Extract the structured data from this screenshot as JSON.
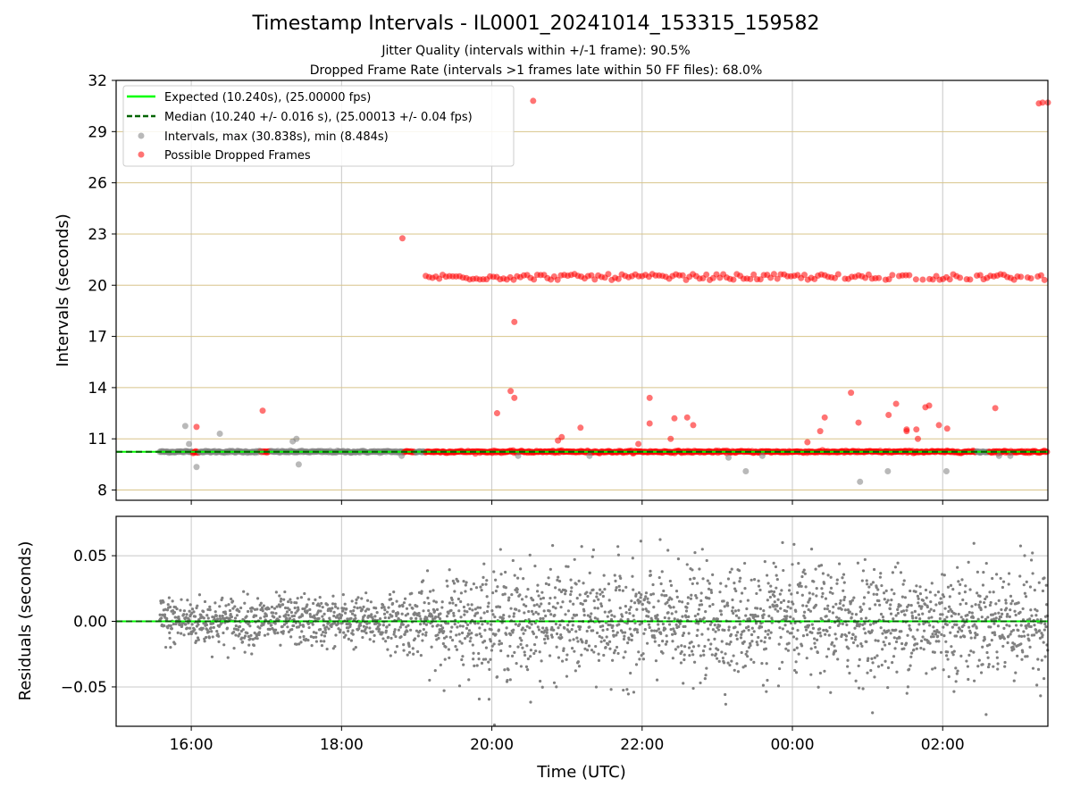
{
  "chart_data": [
    {
      "type": "scatter",
      "title": "Timestamp Intervals - IL0001_20241014_153315_159582",
      "subtitle_lines": [
        "Jitter Quality (intervals within +/-1 frame): 90.5%",
        "Dropped Frame Rate (intervals >1 frames late within 50 FF files): 68.0%"
      ],
      "xlabel": "",
      "ylabel": "Intervals (seconds)",
      "xlim_hours": [
        15.0,
        27.4
      ],
      "ylim": [
        7.4,
        32
      ],
      "yticks": [
        8,
        11,
        14,
        17,
        20,
        23,
        26,
        29,
        32
      ],
      "grid": true,
      "legend_position": "upper left",
      "legend": [
        "Expected (10.240s), (25.00000 fps)",
        "Median (10.240 +/- 0.016 s), (25.00013 +/- 0.04 fps)",
        "Intervals, max (30.838s), min (8.484s)",
        "Possible Dropped Frames"
      ],
      "expected_interval": 10.24,
      "median_interval": 10.24,
      "series": [
        {
          "name": "Intervals, max (30.838s), min (8.484s)",
          "color": "#808080",
          "points": [
            [
              15.92,
              11.75
            ],
            [
              15.97,
              10.7
            ],
            [
              16.07,
              9.35
            ],
            [
              16.38,
              11.3
            ],
            [
              16.93,
              10.25
            ],
            [
              17.35,
              10.85
            ],
            [
              17.4,
              11.0
            ],
            [
              17.43,
              9.5
            ],
            [
              18.8,
              10.0
            ],
            [
              20.35,
              10.0
            ],
            [
              21.3,
              10.0
            ],
            [
              23.15,
              9.9
            ],
            [
              23.38,
              9.1
            ],
            [
              23.6,
              10.0
            ],
            [
              24.9,
              8.484
            ],
            [
              25.27,
              9.1
            ],
            [
              26.05,
              9.1
            ],
            [
              26.5,
              10.2
            ],
            [
              26.75,
              10.0
            ],
            [
              26.9,
              10.0
            ]
          ]
        },
        {
          "name": "Possible Dropped Frames",
          "color": "#ff0000",
          "points": [
            [
              16.07,
              11.7
            ],
            [
              16.95,
              12.65
            ],
            [
              18.81,
              22.75
            ],
            [
              20.07,
              12.5
            ],
            [
              20.25,
              13.8
            ],
            [
              20.3,
              13.4
            ],
            [
              20.3,
              17.85
            ],
            [
              20.55,
              30.8
            ],
            [
              20.88,
              10.9
            ],
            [
              20.93,
              11.1
            ],
            [
              21.18,
              11.65
            ],
            [
              21.95,
              10.7
            ],
            [
              22.1,
              13.4
            ],
            [
              22.1,
              11.9
            ],
            [
              22.38,
              11.0
            ],
            [
              22.43,
              12.2
            ],
            [
              22.6,
              12.25
            ],
            [
              22.68,
              11.8
            ],
            [
              24.2,
              10.8
            ],
            [
              24.37,
              11.45
            ],
            [
              24.43,
              12.25
            ],
            [
              24.78,
              13.7
            ],
            [
              24.88,
              11.95
            ],
            [
              25.28,
              12.4
            ],
            [
              25.38,
              13.05
            ],
            [
              25.52,
              11.55
            ],
            [
              25.52,
              11.45
            ],
            [
              25.65,
              11.55
            ],
            [
              25.67,
              11.0
            ],
            [
              25.77,
              12.85
            ],
            [
              25.82,
              12.95
            ],
            [
              25.95,
              11.8
            ],
            [
              26.06,
              11.6
            ],
            [
              26.7,
              12.8
            ],
            [
              27.28,
              30.65
            ],
            [
              27.33,
              30.7
            ],
            [
              27.4,
              30.7
            ]
          ]
        }
      ],
      "dropped_cluster": {
        "name": "Possible Dropped Frames",
        "level": 20.48,
        "x_range": [
          19.12,
          27.4
        ]
      }
    },
    {
      "type": "scatter",
      "xlabel": "Time (UTC)",
      "ylabel": "Residuals (seconds)",
      "xlim_hours": [
        15.0,
        27.4
      ],
      "ylim": [
        -0.08,
        0.08
      ],
      "yticks": [
        0.05,
        0.0,
        -0.05
      ],
      "ytick_labels": [
        "0.05",
        "0.00",
        "−0.05"
      ],
      "xticks_hours": [
        16,
        18,
        20,
        22,
        24,
        26
      ],
      "xtick_labels": [
        "16:00",
        "18:00",
        "20:00",
        "22:00",
        "00:00",
        "02:00"
      ],
      "grid": true,
      "series": [
        {
          "name": "",
          "color": "#808080",
          "data_range": [
            15.58,
            27.4
          ],
          "spread_early_sd": 0.0095,
          "spread_late_sd": 0.021
        }
      ]
    }
  ]
}
